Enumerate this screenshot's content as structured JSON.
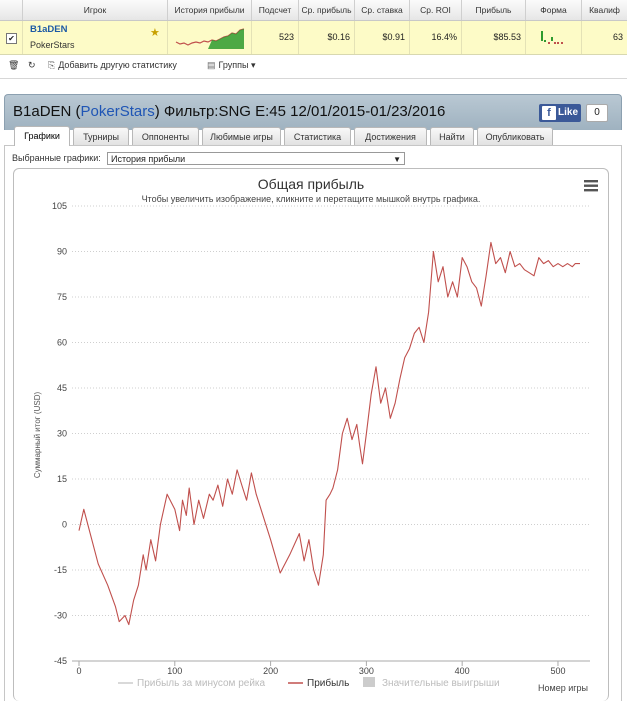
{
  "table": {
    "headers": [
      "",
      "Игрок",
      "История прибыли",
      "Подсчет",
      "Ср. прибыль",
      "Ср. ставка",
      "Ср. ROI",
      "Прибыль",
      "Форма",
      "Квалиф"
    ],
    "row": {
      "checked": "✔",
      "player": "B1aDEN",
      "site": "PokerStars",
      "count": "523",
      "avg_profit": "$0.16",
      "avg_stake": "$0.91",
      "avg_roi": "16.4%",
      "profit": "$85.53",
      "qualif": "63"
    }
  },
  "toolbar": {
    "add_stat": "Добавить другую статистику",
    "groups": "Группы"
  },
  "header": {
    "player": "B1aDEN",
    "open_paren": " (",
    "site": "PokerStars",
    "rest": ") Фильтр:SNG E:45 12/01/2015-01/23/2016",
    "like_label": "Like",
    "like_count": "0"
  },
  "tabs": [
    "Графики",
    "Турниры",
    "Оппоненты",
    "Любимые игры",
    "Статистика",
    "Достижения",
    "Найти",
    "Опубликовать"
  ],
  "selector": {
    "label": "Выбранные графики:",
    "value": "История прибыли"
  },
  "colors": {
    "profit_line": "#c0504d",
    "header_bg": "#a9bbc8",
    "row_highlight": "#fdfbc7"
  },
  "chart_data": {
    "type": "line",
    "title": "Общая прибыль",
    "subtitle": "Чтобы увеличить изображение, кликните и перетащите мышкой внутрь графика.",
    "ylabel": "Суммарный итог (USD)",
    "xlabel": "Номер игры",
    "xlim": [
      0,
      523
    ],
    "ylim": [
      -45,
      105
    ],
    "xticks": [
      0,
      100,
      200,
      300,
      400,
      500
    ],
    "yticks": [
      -45,
      -30,
      -15,
      0,
      15,
      30,
      45,
      60,
      75,
      90,
      105
    ],
    "grid": "horizontal dotted",
    "legend": [
      "Прибыль за минусом рейка",
      "Прибыль",
      "Значительные выигрыши"
    ],
    "legend_placement": "bottom",
    "series": [
      {
        "name": "Прибыль",
        "x": [
          0,
          5,
          20,
          30,
          38,
          42,
          48,
          52,
          57,
          62,
          67,
          70,
          75,
          80,
          85,
          92,
          100,
          105,
          108,
          112,
          115,
          120,
          125,
          130,
          136,
          140,
          145,
          150,
          155,
          160,
          165,
          170,
          175,
          180,
          185,
          190,
          200,
          210,
          220,
          230,
          235,
          240,
          245,
          250,
          255,
          258,
          262,
          265,
          270,
          275,
          280,
          285,
          290,
          293,
          296,
          300,
          305,
          310,
          315,
          320,
          325,
          330,
          335,
          340,
          345,
          350,
          355,
          360,
          365,
          370,
          375,
          380,
          385,
          390,
          395,
          400,
          405,
          410,
          415,
          420,
          425,
          430,
          435,
          440,
          445,
          450,
          455,
          460,
          465,
          470,
          475,
          480,
          485,
          490,
          495,
          500,
          505,
          510,
          515,
          518,
          523
        ],
        "y": [
          -2,
          5,
          -13,
          -20,
          -27,
          -32,
          -30,
          -33,
          -25,
          -20,
          -10,
          -15,
          -5,
          -12,
          0,
          10,
          5,
          -2,
          8,
          3,
          12,
          0,
          8,
          2,
          10,
          8,
          13,
          6,
          15,
          10,
          18,
          13,
          8,
          17,
          10,
          5,
          -5,
          -16,
          -10,
          -3,
          -12,
          -5,
          -15,
          -20,
          -10,
          8,
          10,
          12,
          18,
          30,
          35,
          28,
          33,
          26,
          20,
          30,
          43,
          52,
          40,
          45,
          35,
          40,
          48,
          55,
          58,
          63,
          65,
          60,
          70,
          90,
          80,
          85,
          75,
          80,
          75,
          88,
          85,
          80,
          78,
          72,
          82,
          93,
          86,
          88,
          83,
          90,
          85,
          86,
          84,
          83,
          82,
          88,
          86,
          87,
          85,
          86,
          85,
          86,
          85,
          86,
          86
        ]
      }
    ]
  }
}
